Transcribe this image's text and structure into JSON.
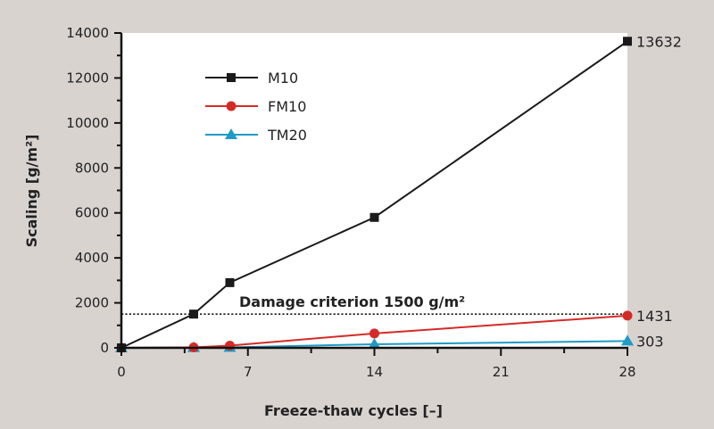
{
  "chart_data": {
    "type": "line",
    "title": "",
    "xlabel": "Freeze-thaw cycles [–]",
    "ylabel": "Scaling [g/m²]",
    "xlim": [
      0,
      28
    ],
    "ylim": [
      0,
      14000
    ],
    "x_ticks": [
      0,
      7,
      14,
      21,
      28
    ],
    "y_ticks": [
      0,
      2000,
      4000,
      6000,
      8000,
      10000,
      12000,
      14000
    ],
    "x_tick_labels": [
      "0",
      "7",
      "14",
      "21",
      "28"
    ],
    "y_tick_labels": [
      "0",
      "2000",
      "4000",
      "6000",
      "8000",
      "10000",
      "12000",
      "14000"
    ],
    "grid": false,
    "legend_position": "top-left",
    "series": [
      {
        "name": "M10",
        "color": "#1a1a1a",
        "marker": "square",
        "x": [
          0,
          4,
          6,
          14,
          28
        ],
        "y": [
          0,
          1500,
          2900,
          5800,
          13632
        ],
        "end_label": "13632"
      },
      {
        "name": "FM10",
        "color": "#d42b27",
        "marker": "circle",
        "x": [
          0,
          4,
          6,
          14,
          28
        ],
        "y": [
          0,
          20,
          100,
          640,
          1431
        ],
        "end_label": "1431"
      },
      {
        "name": "TM20",
        "color": "#1f9bc7",
        "marker": "triangle",
        "x": [
          0,
          4,
          6,
          14,
          28
        ],
        "y": [
          0,
          10,
          20,
          160,
          303
        ],
        "end_label": "303"
      }
    ],
    "annotations": [
      {
        "type": "hline",
        "y": 1500,
        "style": "dotted",
        "label": "Damage criterion 1500 g/m²"
      }
    ]
  }
}
